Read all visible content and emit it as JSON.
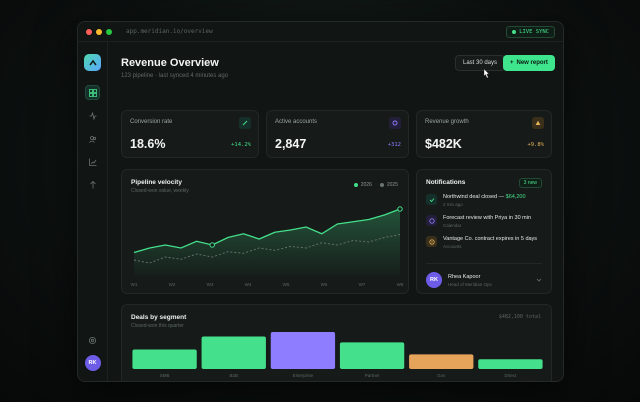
{
  "window": {
    "url": "app.meridian.io/overview",
    "live_label": "LIVE SYNC"
  },
  "header": {
    "title": "Revenue Overview",
    "subtitle": "123 pipeline · last synced 4 minutes ago",
    "range_button": "Last 30 days",
    "new_report_button": "New report"
  },
  "sidebar": {
    "items": [
      {
        "icon": "grid-icon",
        "active": true
      },
      {
        "icon": "activity-icon",
        "active": false
      },
      {
        "icon": "users-icon",
        "active": false
      },
      {
        "icon": "chart-icon",
        "active": false
      },
      {
        "icon": "pulse-icon",
        "active": false
      }
    ],
    "settings_icon": "gear-icon",
    "avatar_initials": "RK"
  },
  "kpis": [
    {
      "label": "Conversion rate",
      "value": "18.6%",
      "delta": "+14.2%",
      "delta_color": "#44e08b",
      "icon": "pencil-icon",
      "icon_color": "#44e08b",
      "icon_bg": "#15302a"
    },
    {
      "label": "Active accounts",
      "value": "2,847",
      "delta": "+312",
      "delta_color": "#8f7dff",
      "icon": "hexagon-icon",
      "icon_color": "#8f7dff",
      "icon_bg": "#231f3a"
    },
    {
      "label": "Revenue growth",
      "value": "$482K",
      "delta": "+9.8%",
      "delta_color": "#e6b25a",
      "icon": "triangle-icon",
      "icon_color": "#e6b25a",
      "icon_bg": "#3a2f1a"
    }
  ],
  "pipeline": {
    "title": "Pipeline velocity",
    "subtitle": "Closed-won value, weekly",
    "legend": [
      {
        "name": "2026",
        "color": "#44e08b"
      },
      {
        "name": "2025",
        "color": "#6b7470"
      }
    ]
  },
  "chart_data": [
    {
      "type": "area",
      "title": "Pipeline velocity",
      "subtitle": "Closed-won value, weekly",
      "categories": [
        "W1",
        "W2",
        "W3",
        "W4",
        "W5",
        "W6",
        "W7",
        "W8"
      ],
      "x": [
        0,
        1,
        2,
        3,
        4,
        5,
        6,
        7,
        8,
        9,
        10,
        11,
        12,
        13,
        14,
        15,
        16,
        17
      ],
      "series": [
        {
          "name": "2026",
          "color": "#44e08b",
          "values": [
            30,
            36,
            40,
            36,
            45,
            40,
            50,
            55,
            48,
            57,
            60,
            64,
            55,
            68,
            71,
            74,
            80,
            88
          ]
        },
        {
          "name": "2025",
          "color": "#6b7470",
          "values": [
            20,
            16,
            24,
            21,
            28,
            24,
            31,
            29,
            36,
            33,
            38,
            36,
            43,
            40,
            46,
            44,
            50,
            54
          ]
        }
      ],
      "ylim": [
        0,
        100
      ],
      "highlight_points": [
        {
          "series": "2026",
          "index": 5
        },
        {
          "series": "2026",
          "index": 17
        }
      ],
      "grid": false
    },
    {
      "type": "bar",
      "title": "Deals by segment",
      "subtitle": "Closed-won this quarter",
      "categories": [
        "SMB",
        "B2B",
        "Enterprise",
        "Partner",
        "Gov",
        "Direct"
      ],
      "values": [
        60,
        100,
        114,
        82,
        45,
        30
      ],
      "colors": [
        "#44e08b",
        "#44e08b",
        "#8f7dff",
        "#44e08b",
        "#e6a45a",
        "#44e08b"
      ],
      "ylim": [
        0,
        120
      ],
      "total_label": "$482,100 total"
    }
  ],
  "notifications": {
    "title": "Notifications",
    "badge": "3 new",
    "items": [
      {
        "icon": "check-icon",
        "color": "#44e08b",
        "bg": "#15302a",
        "title_prefix": "Northwind deal closed — ",
        "title_highlight": "$64,200",
        "meta": "2 min ago"
      },
      {
        "icon": "clock-icon",
        "color": "#8f7dff",
        "bg": "#231f3a",
        "title_prefix": "Forecast review with Priya in 30 min",
        "title_highlight": "",
        "meta": "Calendar"
      },
      {
        "icon": "alert-icon",
        "color": "#e6b25a",
        "bg": "#3a2f1a",
        "title_prefix": "Vantage Co. contract expires in 5 days",
        "title_highlight": "",
        "meta": "Accounts"
      }
    ],
    "profile": {
      "initials": "RK",
      "name": "Rhea Kapoor",
      "role": "Head of Meridian Ops"
    }
  },
  "deals": {
    "title": "Deals by segment",
    "subtitle": "Closed-won this quarter",
    "total": "$482,100 total"
  }
}
